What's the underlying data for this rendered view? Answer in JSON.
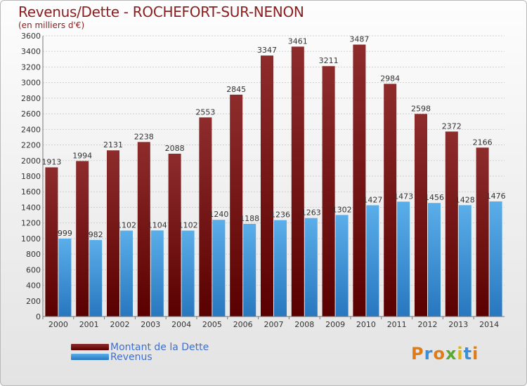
{
  "header": {
    "title": "Revenus/Dette - ROCHEFORT-SUR-NENON",
    "subtitle": "(en milliers d'€)"
  },
  "logo": {
    "letters": [
      "P",
      "r",
      "o",
      "x",
      "i",
      "t",
      "i"
    ]
  },
  "colors": {
    "dette_top": "#8e2c2c",
    "dette_bottom": "#5a0000",
    "revenus_top": "#5aaee9",
    "revenus_bottom": "#2877bf",
    "title": "#8a1e1e",
    "legend_text": "#3e6fd0"
  },
  "chart_data": {
    "type": "bar",
    "title": "Revenus/Dette - ROCHEFORT-SUR-NENON",
    "subtitle": "(en milliers d'€)",
    "categories": [
      "2000",
      "2001",
      "2002",
      "2003",
      "2004",
      "2005",
      "2006",
      "2007",
      "2008",
      "2009",
      "2010",
      "2011",
      "2012",
      "2013",
      "2014"
    ],
    "series": [
      {
        "name": "Montant de la Dette",
        "values": [
          1913,
          1994,
          2131,
          2238,
          2088,
          2553,
          2845,
          3347,
          3461,
          3211,
          3487,
          2984,
          2598,
          2372,
          2166
        ]
      },
      {
        "name": "Revenus",
        "values": [
          999,
          982,
          1102,
          1104,
          1102,
          1240,
          1188,
          1236,
          1263,
          1302,
          1427,
          1473,
          1456,
          1428,
          1476
        ]
      }
    ],
    "ylim": [
      0,
      3600
    ],
    "yticks": [
      0,
      200,
      400,
      600,
      800,
      1000,
      1200,
      1400,
      1600,
      1800,
      2000,
      2200,
      2400,
      2600,
      2800,
      3000,
      3200,
      3400,
      3600
    ],
    "grid": true,
    "legend": "bottom-left"
  }
}
